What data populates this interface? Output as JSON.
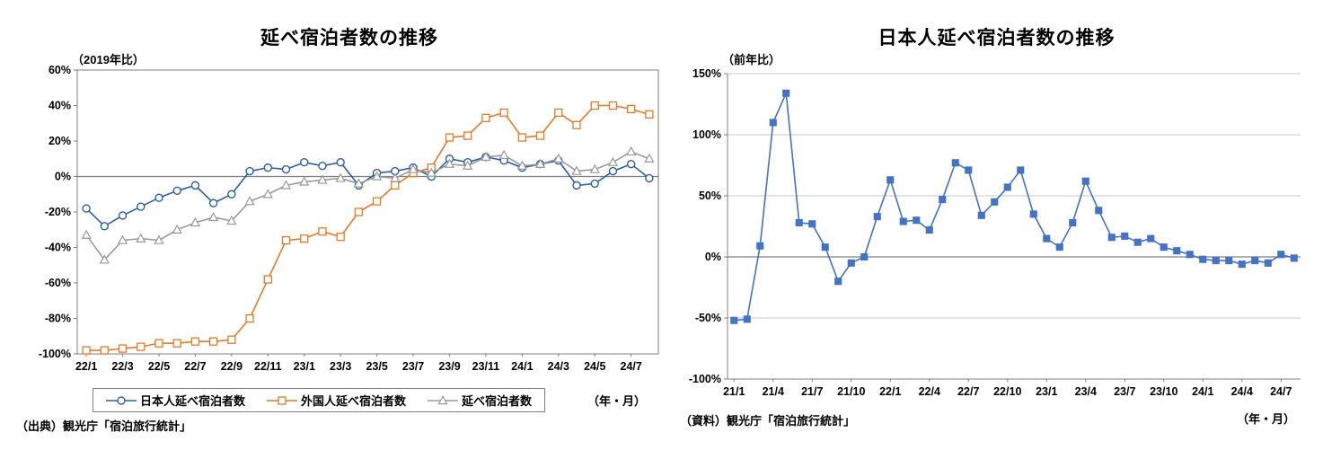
{
  "left_chart": {
    "title": "延べ宿泊者数の推移",
    "y_axis_note": "（2019年比）",
    "x_axis_note": "（年・月）",
    "source": "（出典）観光庁「宿泊旅行統計」"
  },
  "right_chart": {
    "title": "日本人延べ宿泊者数の推移",
    "y_axis_note": "（前年比）",
    "x_axis_note": "（年・月）",
    "source": "（資料）観光庁「宿泊旅行統計」"
  },
  "chart_data": [
    {
      "type": "line",
      "title": "延べ宿泊者数の推移",
      "ylabel": "（2019年比）",
      "xlabel": "（年・月）",
      "ylim": [
        -100,
        60
      ],
      "ytick_values": [
        60,
        40,
        20,
        0,
        -20,
        -40,
        -60,
        -80,
        -100
      ],
      "ytick_labels": [
        "60%",
        "40%",
        "20%",
        "0%",
        "-20%",
        "-40%",
        "-60%",
        "-80%",
        "-100%"
      ],
      "grid": false,
      "frame": "box",
      "legend_position": "bottom",
      "x": [
        "22/1",
        "22/2",
        "22/3",
        "22/4",
        "22/5",
        "22/6",
        "22/7",
        "22/8",
        "22/9",
        "22/10",
        "22/11",
        "22/12",
        "23/1",
        "23/2",
        "23/3",
        "23/4",
        "23/5",
        "23/6",
        "23/7",
        "23/8",
        "23/9",
        "23/10",
        "23/11",
        "23/12",
        "24/1",
        "24/2",
        "24/3",
        "24/4",
        "24/5",
        "24/6",
        "24/7",
        "24/8"
      ],
      "xtick_labels": [
        "22/1",
        "22/3",
        "22/5",
        "22/7",
        "22/9",
        "22/11",
        "23/1",
        "23/3",
        "23/5",
        "23/7",
        "23/9",
        "23/11",
        "24/1",
        "24/3",
        "24/5",
        "24/7"
      ],
      "xtick_every": 2,
      "series": [
        {
          "name": "日本人延べ宿泊者数",
          "color": "#2e5f9e",
          "marker": "circle",
          "filled": false,
          "values": [
            -18,
            -28,
            -22,
            -17,
            -12,
            -8,
            -5,
            -15,
            -10,
            3,
            5,
            4,
            8,
            6,
            8,
            -5,
            2,
            3,
            5,
            0,
            10,
            8,
            11,
            9,
            5,
            7,
            9,
            -5,
            -4,
            3,
            7,
            -1
          ]
        },
        {
          "name": "外国人延べ宿泊者数",
          "color": "#e07b2a",
          "marker": "square",
          "filled": false,
          "values": [
            -98,
            -98,
            -97,
            -96,
            -94,
            -94,
            -93,
            -93,
            -92,
            -80,
            -58,
            -36,
            -35,
            -31,
            -34,
            -20,
            -14,
            -5,
            2,
            5,
            22,
            23,
            33,
            36,
            22,
            23,
            36,
            29,
            40,
            40,
            38,
            35
          ]
        },
        {
          "name": "延べ宿泊者数",
          "color": "#9a9a9a",
          "marker": "triangle",
          "filled": false,
          "values": [
            -33,
            -47,
            -36,
            -35,
            -36,
            -30,
            -26,
            -23,
            -25,
            -14,
            -10,
            -5,
            -3,
            -2,
            -1,
            -4,
            0,
            -1,
            4,
            2,
            7,
            6,
            11,
            12,
            6,
            7,
            10,
            3,
            4,
            8,
            14,
            10
          ]
        }
      ]
    },
    {
      "type": "line",
      "title": "日本人延べ宿泊者数の推移",
      "ylabel": "（前年比）",
      "xlabel": "（年・月）",
      "ylim": [
        -100,
        150
      ],
      "ytick_values": [
        150,
        100,
        50,
        0,
        -50,
        -100
      ],
      "ytick_labels": [
        "150%",
        "100%",
        "50%",
        "0%",
        "-50%",
        "-100%"
      ],
      "grid": true,
      "frame": "axes",
      "legend_position": "none",
      "x": [
        "21/1",
        "21/2",
        "21/3",
        "21/4",
        "21/5",
        "21/6",
        "21/7",
        "21/8",
        "21/9",
        "21/10",
        "21/11",
        "21/12",
        "22/1",
        "22/2",
        "22/3",
        "22/4",
        "22/5",
        "22/6",
        "22/7",
        "22/8",
        "22/9",
        "22/10",
        "22/11",
        "22/12",
        "23/1",
        "23/2",
        "23/3",
        "23/4",
        "23/5",
        "23/6",
        "23/7",
        "23/8",
        "23/9",
        "23/10",
        "23/11",
        "23/12",
        "24/1",
        "24/2",
        "24/3",
        "24/4",
        "24/5",
        "24/6",
        "24/7",
        "24/8"
      ],
      "xtick_labels": [
        "21/1",
        "21/4",
        "21/7",
        "21/10",
        "22/1",
        "22/4",
        "22/7",
        "22/10",
        "23/1",
        "23/4",
        "23/7",
        "23/10",
        "24/1",
        "24/4",
        "24/7"
      ],
      "xtick_every": 3,
      "series": [
        {
          "name": "日本人延べ宿泊者数",
          "color": "#4472c4",
          "marker": "square",
          "filled": true,
          "values": [
            -52,
            -51,
            9,
            110,
            134,
            28,
            27,
            8,
            -20,
            -5,
            0,
            33,
            63,
            29,
            30,
            22,
            47,
            77,
            71,
            34,
            45,
            57,
            71,
            35,
            15,
            8,
            28,
            62,
            38,
            16,
            17,
            12,
            15,
            8,
            5,
            2,
            -2,
            -3,
            -3,
            -6,
            -3,
            -5,
            2,
            -1
          ]
        }
      ]
    }
  ]
}
